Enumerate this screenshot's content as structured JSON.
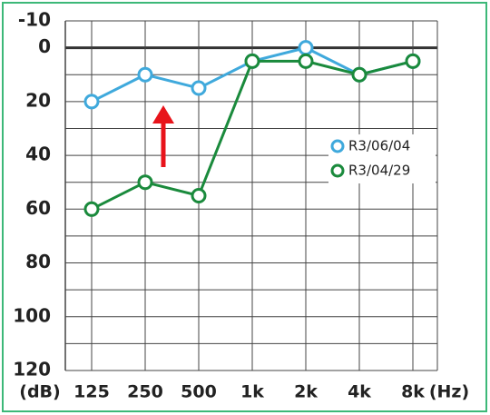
{
  "chart_data": {
    "type": "line",
    "categories": [
      "125",
      "250",
      "500",
      "1k",
      "2k",
      "4k",
      "8k"
    ],
    "ylabel": "(dB)",
    "xlabel": "(Hz)",
    "ylim": [
      -10,
      120
    ],
    "yticks": [
      -10,
      0,
      20,
      40,
      60,
      80,
      100,
      120
    ],
    "yticks_minor": [
      10,
      30,
      50,
      70,
      90,
      110
    ],
    "inverted_y": true,
    "grid": true,
    "legend": "right",
    "series": [
      {
        "name": "R3/06/04",
        "color": "#3fa9dc",
        "values": [
          20,
          10,
          15,
          5,
          0,
          10,
          5
        ]
      },
      {
        "name": "R3/04/29",
        "color": "#1a8a3c",
        "values": [
          60,
          50,
          55,
          5,
          5,
          10,
          5
        ]
      }
    ]
  }
}
